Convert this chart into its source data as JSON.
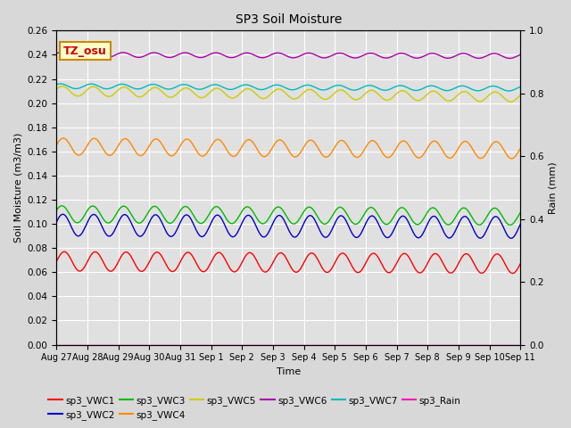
{
  "title": "SP3 Soil Moisture",
  "xlabel": "Time",
  "ylabel_left": "Soil Moisture (m3/m3)",
  "ylabel_right": "Rain (mm)",
  "ylim_left": [
    0,
    0.26
  ],
  "ylim_right": [
    0,
    1.0
  ],
  "background_color": "#d8d8d8",
  "plot_bg_color": "#e0e0e0",
  "annotation_text": "TZ_osu",
  "annotation_color": "#cc0000",
  "annotation_bg": "#ffffcc",
  "annotation_border": "#cc8800",
  "n_points": 500,
  "series": [
    {
      "label": "sp3_VWC1",
      "color": "#ff0000",
      "base": 0.069,
      "amp": 0.008,
      "freq": 1.0,
      "phase": 0.0,
      "trend": -0.002,
      "use_ax2": false
    },
    {
      "label": "sp3_VWC2",
      "color": "#0000cc",
      "base": 0.099,
      "amp": 0.009,
      "freq": 1.0,
      "phase": 0.3,
      "trend": -0.002,
      "use_ax2": false
    },
    {
      "label": "sp3_VWC3",
      "color": "#00bb00",
      "base": 0.108,
      "amp": 0.007,
      "freq": 1.0,
      "phase": 0.5,
      "trend": -0.002,
      "use_ax2": false
    },
    {
      "label": "sp3_VWC4",
      "color": "#ff8800",
      "base": 0.164,
      "amp": 0.007,
      "freq": 1.0,
      "phase": 0.2,
      "trend": -0.003,
      "use_ax2": false
    },
    {
      "label": "sp3_VWC5",
      "color": "#cccc00",
      "base": 0.21,
      "amp": 0.004,
      "freq": 1.0,
      "phase": 0.4,
      "trend": -0.005,
      "use_ax2": false
    },
    {
      "label": "sp3_VWC6",
      "color": "#aa00aa",
      "base": 0.24,
      "amp": 0.002,
      "freq": 1.0,
      "phase": 0.6,
      "trend": -0.001,
      "use_ax2": false
    },
    {
      "label": "sp3_VWC7",
      "color": "#00bbbb",
      "base": 0.214,
      "amp": 0.002,
      "freq": 1.0,
      "phase": 0.8,
      "trend": -0.002,
      "use_ax2": false
    },
    {
      "label": "sp3_Rain",
      "color": "#ff00bb",
      "base": 0.0,
      "amp": 0.0,
      "freq": 0.0,
      "phase": 0.0,
      "trend": 0.0,
      "use_ax2": true
    }
  ],
  "xtick_labels": [
    "Aug 27",
    "Aug 28",
    "Aug 29",
    "Aug 30",
    "Aug 31",
    "Sep 1",
    "Sep 2",
    "Sep 3",
    "Sep 4",
    "Sep 5",
    "Sep 6",
    "Sep 7",
    "Sep 8",
    "Sep 9",
    "Sep 10",
    "Sep 11"
  ],
  "ytick_left": [
    0.0,
    0.02,
    0.04,
    0.06,
    0.08,
    0.1,
    0.12,
    0.14,
    0.16,
    0.18,
    0.2,
    0.22,
    0.24,
    0.26
  ],
  "ytick_right": [
    0.0,
    0.2,
    0.4,
    0.6,
    0.8,
    1.0
  ],
  "grid_color": "#ffffff",
  "linewidth": 1.0
}
